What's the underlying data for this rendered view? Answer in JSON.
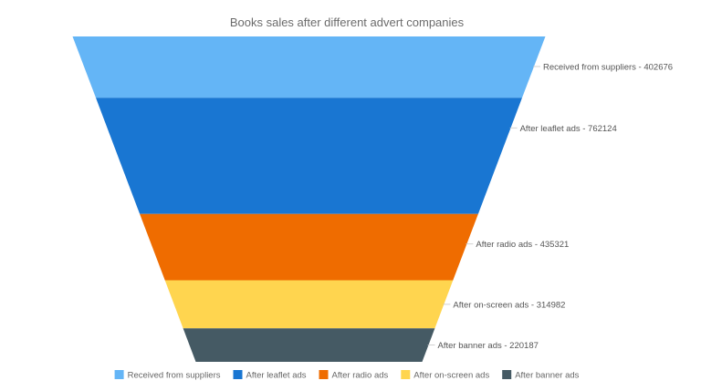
{
  "chart_data": {
    "type": "funnel",
    "title": "Books sales after different advert companies",
    "legend_position": "bottom",
    "series": [
      {
        "name": "Received from suppliers",
        "value": 402676,
        "label": "Received from suppliers - 402676",
        "color": "#64b5f6"
      },
      {
        "name": "After leaflet ads",
        "value": 762124,
        "label": "After leaflet ads - 762124",
        "color": "#1976d2"
      },
      {
        "name": "After radio ads",
        "value": 435321,
        "label": "After radio ads - 435321",
        "color": "#ef6c00"
      },
      {
        "name": "After on-screen ads",
        "value": 314982,
        "label": "After on-screen ads - 314982",
        "color": "#ffd54f"
      },
      {
        "name": "After banner ads",
        "value": 220187,
        "label": "After banner ads - 220187",
        "color": "#455a64"
      }
    ]
  }
}
